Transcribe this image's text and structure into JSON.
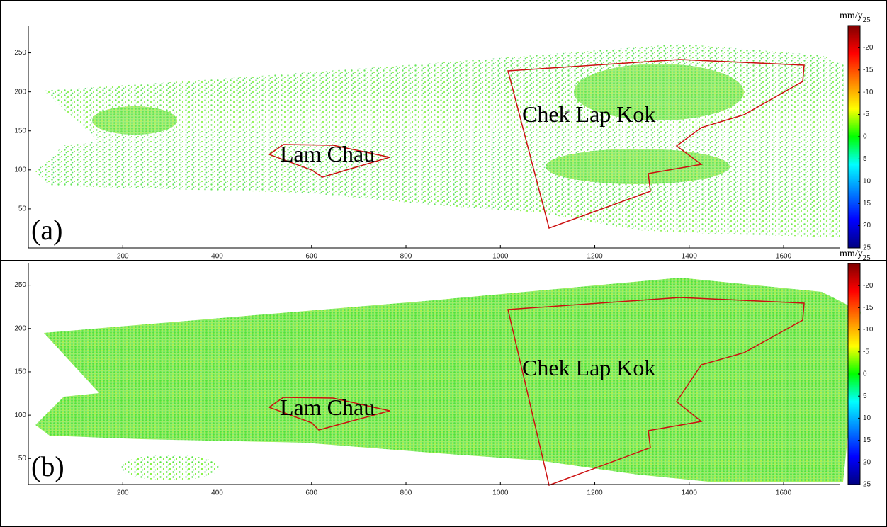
{
  "chart_data": [
    {
      "type": "scatter",
      "panel_label": "(a)",
      "annotations": [
        "Chek Lap Kok",
        "Lam Chau"
      ],
      "xlim": [
        0,
        1720
      ],
      "xticks": [
        200,
        400,
        600,
        800,
        1000,
        1200,
        1400,
        1600
      ],
      "ylim": [
        0,
        285
      ],
      "yticks": [
        50,
        100,
        150,
        200,
        250
      ],
      "colorbar": {
        "label": "mm/y",
        "label_sub": "25",
        "clim": [
          -25,
          25
        ],
        "ticks": [
          -20,
          -15,
          -10,
          -5,
          0,
          5,
          10,
          15,
          20,
          25
        ],
        "colormap": [
          "#800000",
          "#ff0000",
          "#ff8000",
          "#ffff00",
          "#00ff00",
          "#00ffff",
          "#0080ff",
          "#0000ff",
          "#000080"
        ]
      }
    },
    {
      "type": "scatter",
      "panel_label": "(b)",
      "annotations": [
        "Chek Lap Kok",
        "Lam Chau"
      ],
      "xlim": [
        0,
        1720
      ],
      "xticks": [
        200,
        400,
        600,
        800,
        1000,
        1200,
        1400,
        1600
      ],
      "ylim": [
        20,
        275
      ],
      "yticks": [
        50,
        100,
        150,
        200,
        250
      ],
      "colorbar": {
        "label": "mm/y",
        "label_sub": "25",
        "clim": [
          -25,
          25
        ],
        "ticks": [
          -20,
          -15,
          -10,
          -5,
          0,
          5,
          10,
          15,
          20,
          25
        ],
        "colormap": [
          "#800000",
          "#ff0000",
          "#ff8000",
          "#ffff00",
          "#00ff00",
          "#00ffff",
          "#0080ff",
          "#0000ff",
          "#000080"
        ]
      }
    }
  ]
}
